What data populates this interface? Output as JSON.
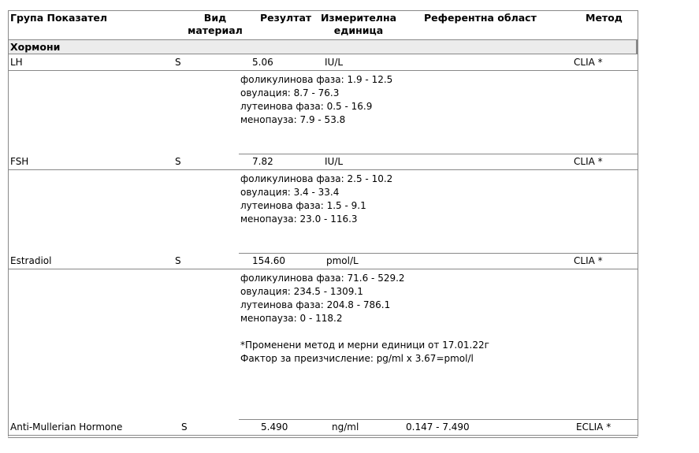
{
  "header": {
    "group": "Група Показател",
    "material": "Вид материал",
    "result": "Резултат",
    "unit": "Измерителна единица",
    "reference": "Референтна област",
    "method": "Метод"
  },
  "category": "Хормони",
  "rows": [
    {
      "name": "LH",
      "material": "S",
      "result": "5.06",
      "unit": "IU/L",
      "reference": "",
      "method": "CLIA *",
      "notes": [
        "фоликулинова фаза: 1.9 - 12.5",
        "овулация: 8.7 - 76.3",
        "лутеинова фаза: 0.5 - 16.9",
        "менопауза: 7.9 - 53.8"
      ]
    },
    {
      "name": "FSH",
      "material": "S",
      "result": "7.82",
      "unit": "IU/L",
      "reference": "",
      "method": "CLIA *",
      "notes": [
        "фоликулинова фаза: 2.5 - 10.2",
        "овулация: 3.4 - 33.4",
        "лутеинова фаза: 1.5 - 9.1",
        "менопауза: 23.0 - 116.3"
      ]
    },
    {
      "name": "Estradiol",
      "material": "S",
      "result": "154.60",
      "unit": "pmol/L",
      "reference": "",
      "method": "CLIA *",
      "notes": [
        "фоликулинова фаза: 71.6 - 529.2",
        "овулация: 234.5 - 1309.1",
        "лутеинова фаза: 204.8 - 786.1",
        "менопауза: 0 - 118.2",
        "",
        "*Променени метод и мерни единици от 17.01.22г",
        "Фактор за преизчисление: pg/ml x 3.67=pmol/l"
      ]
    },
    {
      "name": "Anti-Mullerian Hormone",
      "material": "S",
      "result": "5.490",
      "unit": "ng/ml",
      "reference": "0.147 - 7.490",
      "method": "ECLIA *",
      "notes": []
    }
  ]
}
